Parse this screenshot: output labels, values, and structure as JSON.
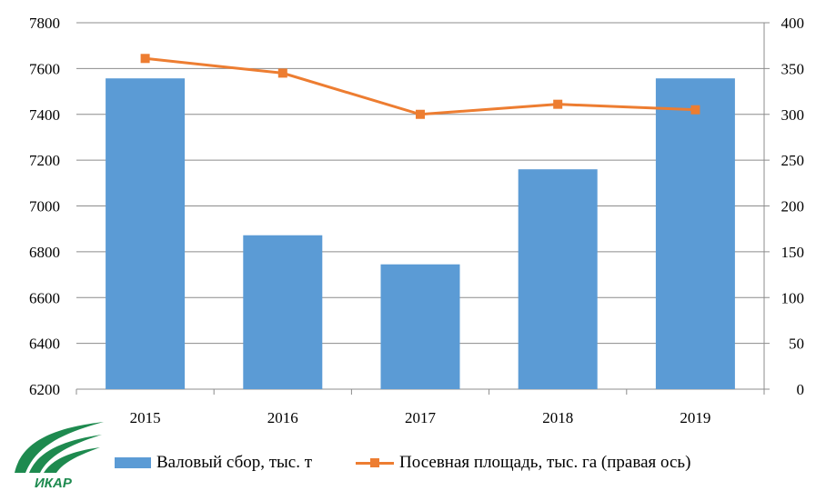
{
  "colors": {
    "bar": "#5b9bd5",
    "line": "#ed7d31",
    "grid": "#8c8c8c",
    "logo": "#1e8a4f"
  },
  "logo": {
    "text": "ИКАР",
    "icon": "ikar-logo-icon"
  },
  "chart_data": {
    "type": "bar",
    "categories": [
      "2015",
      "2016",
      "2017",
      "2018",
      "2019"
    ],
    "series": [
      {
        "name": "Валовый сбор, тыс. т",
        "type": "bar",
        "axis": "left",
        "values": [
          7557,
          6872,
          6745,
          7160,
          7557
        ]
      },
      {
        "name": "Посевная площадь, тыс. га (правая ось)",
        "type": "line",
        "axis": "right",
        "values": [
          361,
          345,
          300,
          311,
          305
        ]
      }
    ],
    "y_left": {
      "min": 6200,
      "max": 7800,
      "step": 200,
      "ticks": [
        "6200",
        "6400",
        "6600",
        "6800",
        "7000",
        "7200",
        "7400",
        "7600",
        "7800"
      ]
    },
    "y_right": {
      "min": 0,
      "max": 400,
      "step": 50,
      "ticks": [
        "0",
        "50",
        "100",
        "150",
        "200",
        "250",
        "300",
        "350",
        "400"
      ]
    },
    "grid": true,
    "legend": "bottom"
  }
}
